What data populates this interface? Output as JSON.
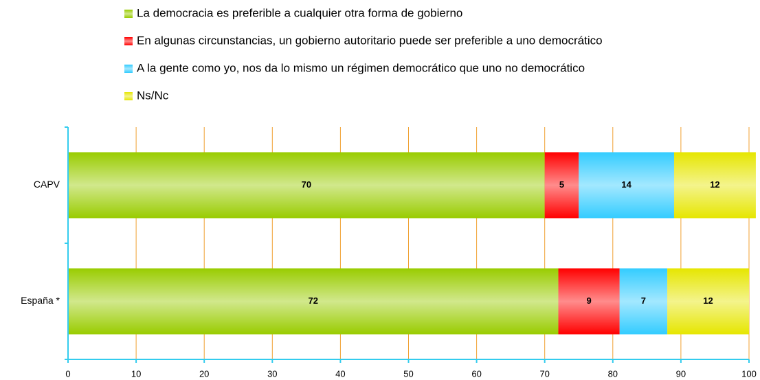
{
  "chart_data": {
    "type": "stacked_bar_horizontal",
    "categories": [
      "CAPV",
      "España *"
    ],
    "series": [
      {
        "name": "La democracia es preferible a cualquier otra forma de gobierno",
        "color": "#99cc00",
        "values": [
          70,
          72
        ]
      },
      {
        "name": "En algunas circunstancias, un gobierno autoritario puede ser preferible a uno democrático",
        "color": "#ff0000",
        "values": [
          5,
          9
        ]
      },
      {
        "name": "A la gente como yo, nos da lo mismo un régimen democrático que uno no democrático",
        "color": "#33ccff",
        "values": [
          14,
          7
        ]
      },
      {
        "name": "Ns/Nc",
        "color": "#e6e600",
        "values": [
          12,
          12
        ]
      }
    ],
    "xlim": [
      0,
      100
    ],
    "xticks": [
      0,
      10,
      20,
      30,
      40,
      50,
      60,
      70,
      80,
      90,
      100
    ],
    "grid": true,
    "legend": "top"
  }
}
